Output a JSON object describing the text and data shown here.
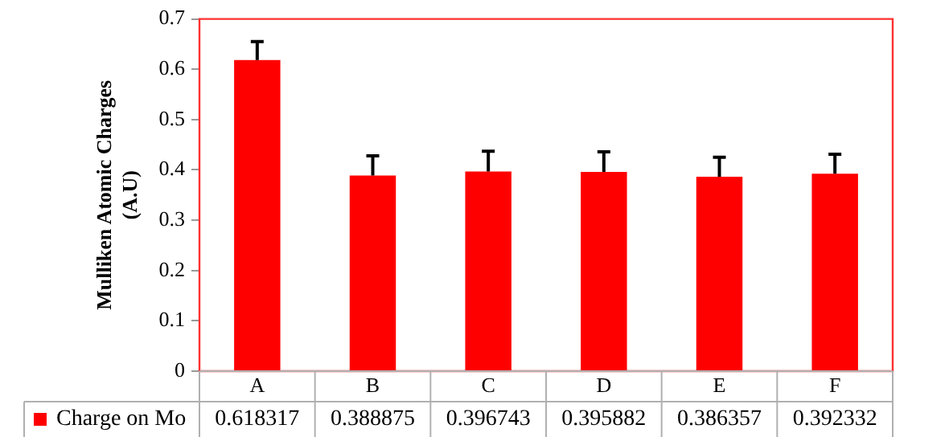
{
  "chart_data": {
    "type": "bar",
    "ylabel": "Mulliken Atomic Charges (A.U)",
    "categories": [
      "A",
      "B",
      "C",
      "D",
      "E",
      "F"
    ],
    "series": [
      {
        "name": "Charge on Mo",
        "color": "#ff0000",
        "values": [
          0.618317,
          0.388875,
          0.396743,
          0.395882,
          0.386357,
          0.392332
        ],
        "errors": [
          [
            0.618317,
            0.655
          ],
          [
            0.388875,
            0.428
          ],
          [
            0.396743,
            0.437
          ],
          [
            0.395882,
            0.436
          ],
          [
            0.386357,
            0.425
          ],
          [
            0.392332,
            0.431
          ]
        ]
      }
    ],
    "ylim": [
      0,
      0.7
    ],
    "yticks": [
      0,
      0.1,
      0.2,
      0.3,
      0.4,
      0.5,
      0.6,
      0.7
    ],
    "grid": false,
    "legend": "bottom left",
    "data_labels": true
  }
}
